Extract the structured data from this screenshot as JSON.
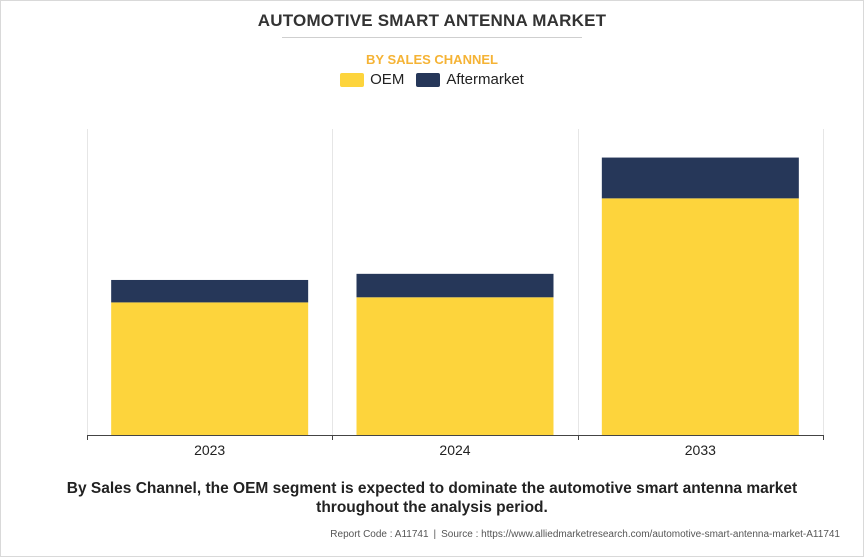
{
  "chart_data": {
    "type": "bar",
    "stacked": true,
    "title": "AUTOMOTIVE SMART ANTENNA MARKET",
    "subtitle": "BY SALES CHANNEL",
    "categories": [
      "2023",
      "2024",
      "2033"
    ],
    "series": [
      {
        "name": "OEM",
        "color": "#fdd43c",
        "values": [
          130,
          135,
          232
        ]
      },
      {
        "name": "Aftermarket",
        "color": "#263759",
        "values": [
          22,
          23,
          40
        ]
      }
    ],
    "ylim": [
      0,
      300
    ],
    "xlabel": "",
    "ylabel": "",
    "legend": "top-center"
  },
  "caption": "By Sales Channel, the OEM segment is expected to dominate the automotive smart antenna market throughout the analysis period.",
  "source": {
    "report_code": "Report Code : A11741",
    "source_text": "Source : https://www.alliedmarketresearch.com/automotive-smart-antenna-market-A11741"
  }
}
